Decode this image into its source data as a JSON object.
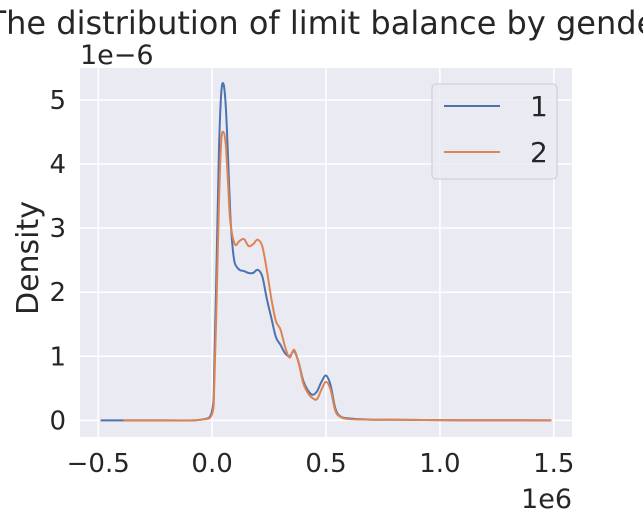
{
  "chart_data": {
    "type": "line",
    "title": "The distribution of limit balance by gender",
    "xlabel": "",
    "ylabel": "Density",
    "x_offset_label": "1e6",
    "y_offset_label": "1e−6",
    "xlim": [
      -0.58,
      1.58
    ],
    "ylim": [
      -0.26,
      5.5
    ],
    "xticks": [
      -0.5,
      0.0,
      0.5,
      1.0,
      1.5
    ],
    "xtick_labels": [
      "−0.5",
      "0.0",
      "0.5",
      "1.0",
      "1.5"
    ],
    "yticks": [
      0,
      1,
      2,
      3,
      4,
      5
    ],
    "ytick_labels": [
      "0",
      "1",
      "2",
      "3",
      "4",
      "5"
    ],
    "grid": true,
    "legend_position": "top-right",
    "colors": {
      "background": "#EAEAF2",
      "grid": "#FFFFFF",
      "text": "#262626"
    },
    "series": [
      {
        "name": "1",
        "color": "#4C72B0",
        "x": [
          -0.49,
          -0.2,
          -0.05,
          0.0,
          0.01,
          0.02,
          0.03,
          0.04,
          0.05,
          0.06,
          0.07,
          0.08,
          0.09,
          0.1,
          0.12,
          0.14,
          0.16,
          0.18,
          0.2,
          0.22,
          0.24,
          0.26,
          0.28,
          0.3,
          0.32,
          0.34,
          0.36,
          0.38,
          0.4,
          0.42,
          0.44,
          0.46,
          0.48,
          0.5,
          0.52,
          0.54,
          0.56,
          0.6,
          0.7,
          0.8,
          1.0,
          1.2,
          1.49
        ],
        "y": [
          0,
          0,
          0.01,
          0.15,
          0.9,
          2.5,
          4.2,
          5.1,
          5.25,
          4.9,
          4.1,
          3.2,
          2.7,
          2.45,
          2.35,
          2.33,
          2.3,
          2.3,
          2.35,
          2.25,
          1.9,
          1.6,
          1.3,
          1.18,
          1.05,
          1.0,
          1.08,
          0.9,
          0.62,
          0.47,
          0.4,
          0.45,
          0.6,
          0.7,
          0.55,
          0.2,
          0.07,
          0.03,
          0.01,
          0.01,
          0.003,
          0.002,
          0
        ]
      },
      {
        "name": "2",
        "color": "#DD8452",
        "x": [
          -0.39,
          -0.2,
          -0.05,
          0.0,
          0.01,
          0.02,
          0.03,
          0.04,
          0.05,
          0.06,
          0.07,
          0.08,
          0.1,
          0.12,
          0.14,
          0.16,
          0.18,
          0.2,
          0.22,
          0.24,
          0.26,
          0.28,
          0.3,
          0.32,
          0.34,
          0.36,
          0.38,
          0.4,
          0.42,
          0.44,
          0.46,
          0.48,
          0.5,
          0.52,
          0.54,
          0.56,
          0.6,
          0.7,
          0.8,
          1.0,
          1.2,
          1.49
        ],
        "y": [
          0,
          0,
          0.01,
          0.1,
          0.6,
          1.9,
          3.4,
          4.35,
          4.5,
          4.3,
          3.7,
          3.1,
          2.75,
          2.8,
          2.83,
          2.72,
          2.75,
          2.82,
          2.72,
          2.35,
          1.9,
          1.55,
          1.42,
          1.15,
          0.98,
          1.1,
          0.9,
          0.58,
          0.43,
          0.35,
          0.33,
          0.48,
          0.6,
          0.48,
          0.16,
          0.06,
          0.02,
          0.01,
          0.01,
          0.003,
          0.002,
          0
        ]
      }
    ]
  }
}
